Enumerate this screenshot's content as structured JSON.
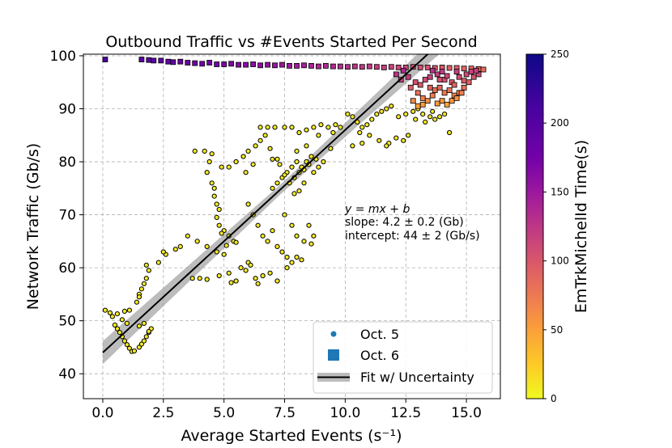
{
  "chart_data": {
    "type": "scatter",
    "title": "Outbound Traffic vs #Events Started Per Second",
    "xlabel": "Average Started Events (s⁻¹)",
    "ylabel": "Network Traffic (Gb/s)",
    "xlim": [
      -0.8,
      16.4
    ],
    "ylim": [
      35.3,
      100.3
    ],
    "xticks": [
      0.0,
      2.5,
      5.0,
      7.5,
      10.0,
      12.5,
      15.0
    ],
    "xtick_labels": [
      "0.0",
      "2.5",
      "5.0",
      "7.5",
      "10.0",
      "12.5",
      "15.0"
    ],
    "yticks": [
      40,
      50,
      60,
      70,
      80,
      90,
      100
    ],
    "ytick_labels": [
      "40",
      "50",
      "60",
      "70",
      "80",
      "90",
      "100"
    ],
    "grid": true,
    "colorbar": {
      "label": "EmTrkMichelId Time(s)",
      "range": [
        0,
        250
      ],
      "ticks": [
        0,
        50,
        100,
        150,
        200,
        250
      ],
      "tick_labels": [
        "0",
        "50",
        "100",
        "150",
        "200",
        "250"
      ],
      "colormap": "plasma_r"
    },
    "fit": {
      "label": "Fit w/ Uncertainty",
      "slope": 4.2,
      "intercept": 44,
      "x_range": [
        0.0,
        15.8
      ],
      "band_color": "#a0a0a0",
      "line_color": "#000000"
    },
    "annotation": {
      "equation": "y = mx + b",
      "slope_text": "slope: 4.2 ± 0.2 (Gb)",
      "intercept_text": "intercept: 44 ± 2 (Gb/s)"
    },
    "legend": {
      "placement": "lower-right",
      "entries": [
        {
          "label": "Oct. 5",
          "marker": "circle",
          "color": "#1f77b4"
        },
        {
          "label": "Oct. 6",
          "marker": "square",
          "color": "#1f77b4"
        },
        {
          "label": "Fit w/ Uncertainty",
          "marker": "line-band",
          "color": "#000000"
        }
      ]
    },
    "series": [
      {
        "name": "Oct. 5",
        "marker": "circle",
        "points": [
          [
            0.1,
            52
          ],
          [
            0.3,
            51.5
          ],
          [
            0.4,
            50.8
          ],
          [
            0.5,
            49.2
          ],
          [
            0.6,
            48.5
          ],
          [
            0.7,
            47.8
          ],
          [
            0.8,
            47
          ],
          [
            0.9,
            46.2
          ],
          [
            1.0,
            45.5
          ],
          [
            1.1,
            44.8
          ],
          [
            1.2,
            44.2
          ],
          [
            1.3,
            44.3
          ],
          [
            0.6,
            51.3
          ],
          [
            0.9,
            51.8
          ],
          [
            1.1,
            52
          ],
          [
            0.8,
            50.2
          ],
          [
            1.0,
            49.5
          ],
          [
            1.5,
            45
          ],
          [
            1.6,
            45.6
          ],
          [
            1.7,
            46.2
          ],
          [
            1.8,
            47
          ],
          [
            1.9,
            47.8
          ],
          [
            1.5,
            49
          ],
          [
            1.7,
            49.5
          ],
          [
            2.0,
            48.5
          ],
          [
            1.9,
            48
          ],
          [
            1.4,
            53.5
          ],
          [
            1.5,
            55
          ],
          [
            1.6,
            56
          ],
          [
            1.7,
            57
          ],
          [
            1.8,
            58
          ],
          [
            1.9,
            59.5
          ],
          [
            1.8,
            60.5
          ],
          [
            1.5,
            54.5
          ],
          [
            2.3,
            61
          ],
          [
            2.6,
            62.5
          ],
          [
            2.5,
            63
          ],
          [
            3.0,
            63.5
          ],
          [
            3.2,
            64
          ],
          [
            3.5,
            66
          ],
          [
            3.9,
            65
          ],
          [
            4.3,
            64
          ],
          [
            4.7,
            63
          ],
          [
            5.0,
            62.5
          ],
          [
            3.7,
            58
          ],
          [
            4.0,
            58
          ],
          [
            4.3,
            57.8
          ],
          [
            4.8,
            58.5
          ],
          [
            5.2,
            59
          ],
          [
            5.5,
            57.5
          ],
          [
            5.7,
            60
          ],
          [
            6.0,
            61
          ],
          [
            6.3,
            58
          ],
          [
            6.6,
            58.5
          ],
          [
            6.9,
            59
          ],
          [
            7.2,
            57.5
          ],
          [
            6.4,
            57
          ],
          [
            5.3,
            57.2
          ],
          [
            5.9,
            59.5
          ],
          [
            6.1,
            60.5
          ],
          [
            3.8,
            82
          ],
          [
            4.2,
            82
          ],
          [
            4.5,
            81.5
          ],
          [
            4.3,
            78
          ],
          [
            4.5,
            76
          ],
          [
            4.6,
            73.5
          ],
          [
            4.7,
            72
          ],
          [
            4.8,
            71
          ],
          [
            4.7,
            69.5
          ],
          [
            4.8,
            68
          ],
          [
            5.0,
            67
          ],
          [
            5.2,
            66
          ],
          [
            5.4,
            65
          ],
          [
            5.5,
            64.8
          ],
          [
            4.9,
            66.5
          ],
          [
            5.1,
            64.2
          ],
          [
            4.6,
            75
          ],
          [
            4.4,
            80
          ],
          [
            4.9,
            79
          ],
          [
            5.2,
            79
          ],
          [
            5.5,
            80
          ],
          [
            5.8,
            81
          ],
          [
            6.0,
            82
          ],
          [
            6.3,
            83
          ],
          [
            6.5,
            84
          ],
          [
            6.7,
            85
          ],
          [
            6.5,
            86.5
          ],
          [
            6.8,
            86.5
          ],
          [
            7.1,
            86.5
          ],
          [
            7.5,
            86.5
          ],
          [
            7.0,
            80.5
          ],
          [
            7.2,
            80.5
          ],
          [
            6.9,
            82.5
          ],
          [
            6.2,
            79.5
          ],
          [
            5.9,
            78
          ],
          [
            6.0,
            72
          ],
          [
            6.2,
            70
          ],
          [
            6.4,
            68
          ],
          [
            6.6,
            66
          ],
          [
            6.8,
            65
          ],
          [
            7.0,
            67
          ],
          [
            7.2,
            64
          ],
          [
            7.4,
            63
          ],
          [
            7.6,
            62
          ],
          [
            7.8,
            61
          ],
          [
            8.0,
            62
          ],
          [
            8.2,
            61.5
          ],
          [
            7.5,
            70
          ],
          [
            7.8,
            68
          ],
          [
            8.0,
            66
          ],
          [
            8.3,
            65
          ],
          [
            8.5,
            68
          ],
          [
            8.7,
            66
          ],
          [
            8.6,
            64.5
          ],
          [
            7.6,
            60
          ],
          [
            7.0,
            75
          ],
          [
            7.2,
            76
          ],
          [
            7.4,
            77
          ],
          [
            7.6,
            78
          ],
          [
            7.8,
            79
          ],
          [
            8.0,
            80
          ],
          [
            8.2,
            79
          ],
          [
            8.4,
            80
          ],
          [
            8.6,
            81
          ],
          [
            8.8,
            80.5
          ],
          [
            7.5,
            77.5
          ],
          [
            7.7,
            76
          ],
          [
            7.9,
            77
          ],
          [
            8.1,
            78
          ],
          [
            8.3,
            78.5
          ],
          [
            8.5,
            79.5
          ],
          [
            7.9,
            74
          ],
          [
            8.1,
            74.5
          ],
          [
            8.3,
            76
          ],
          [
            8.7,
            78
          ],
          [
            8.9,
            79
          ],
          [
            9.1,
            80
          ],
          [
            8.0,
            82
          ],
          [
            8.4,
            83
          ],
          [
            7.3,
            79.5
          ],
          [
            7.8,
            86.5
          ],
          [
            8.1,
            85.5
          ],
          [
            8.4,
            86
          ],
          [
            8.7,
            86.5
          ],
          [
            9.0,
            87
          ],
          [
            9.3,
            86.5
          ],
          [
            9.6,
            87
          ],
          [
            9.8,
            86.5
          ],
          [
            9.5,
            85.5
          ],
          [
            8.9,
            85
          ],
          [
            10.1,
            89
          ],
          [
            10.3,
            88.5
          ],
          [
            10.5,
            87.5
          ],
          [
            10.7,
            86.5
          ],
          [
            10.9,
            87
          ],
          [
            11.1,
            88
          ],
          [
            11.3,
            89
          ],
          [
            11.5,
            89.5
          ],
          [
            11.7,
            90
          ],
          [
            11.9,
            90.5
          ],
          [
            10.6,
            85.5
          ],
          [
            11.0,
            85
          ],
          [
            11.4,
            84
          ],
          [
            11.8,
            83.5
          ],
          [
            12.1,
            84.5
          ],
          [
            12.4,
            84
          ],
          [
            12.6,
            85
          ],
          [
            11.7,
            83
          ],
          [
            10.3,
            83
          ],
          [
            9.4,
            82.5
          ],
          [
            10.7,
            83.5
          ],
          [
            12.2,
            88.5
          ],
          [
            12.5,
            89
          ],
          [
            12.8,
            89.5
          ],
          [
            13.0,
            90
          ],
          [
            13.2,
            89
          ],
          [
            13.5,
            88.5
          ],
          [
            13.7,
            88
          ],
          [
            13.9,
            88.5
          ],
          [
            14.1,
            89
          ],
          [
            14.3,
            85.5
          ],
          [
            12.9,
            88
          ],
          [
            13.3,
            87.5
          ],
          [
            13.6,
            89.5
          ]
        ]
      },
      {
        "name": "Oct. 6",
        "marker": "square",
        "points": [
          [
            0.1,
            99.3
          ],
          [
            1.6,
            99.3
          ],
          [
            1.9,
            99.2
          ],
          [
            2.1,
            99.1
          ],
          [
            2.4,
            99.1
          ],
          [
            2.7,
            98.9
          ],
          [
            2.9,
            98.8
          ],
          [
            3.2,
            98.9
          ],
          [
            3.5,
            98.7
          ],
          [
            3.8,
            98.6
          ],
          [
            4.1,
            98.5
          ],
          [
            4.4,
            98.7
          ],
          [
            4.7,
            98.4
          ],
          [
            5.0,
            98.4
          ],
          [
            5.3,
            98.5
          ],
          [
            5.6,
            98.3
          ],
          [
            5.9,
            98.3
          ],
          [
            6.2,
            98.4
          ],
          [
            6.5,
            98.2
          ],
          [
            6.8,
            98.3
          ],
          [
            7.1,
            98.2
          ],
          [
            7.4,
            98.3
          ],
          [
            7.7,
            98.1
          ],
          [
            8.0,
            98.1
          ],
          [
            8.3,
            98.2
          ],
          [
            8.6,
            98.1
          ],
          [
            8.9,
            98.0
          ],
          [
            9.2,
            98.1
          ],
          [
            9.5,
            98.0
          ],
          [
            9.8,
            98.0
          ],
          [
            10.1,
            97.9
          ],
          [
            10.4,
            98.0
          ],
          [
            10.7,
            97.9
          ],
          [
            11.0,
            98.0
          ],
          [
            11.3,
            97.9
          ],
          [
            11.6,
            97.8
          ],
          [
            11.9,
            97.9
          ],
          [
            12.2,
            97.8
          ],
          [
            12.5,
            97.8
          ],
          [
            12.8,
            97.9
          ],
          [
            13.1,
            97.8
          ],
          [
            13.4,
            97.8
          ],
          [
            13.7,
            97.7
          ],
          [
            14.0,
            97.8
          ],
          [
            14.3,
            97.7
          ],
          [
            14.6,
            97.7
          ],
          [
            14.9,
            97.6
          ],
          [
            15.2,
            97.6
          ],
          [
            15.5,
            97.5
          ],
          [
            15.7,
            97.4
          ],
          [
            12.1,
            96.5
          ],
          [
            12.3,
            95.5
          ],
          [
            12.6,
            96
          ],
          [
            12.9,
            95
          ],
          [
            13.1,
            94.5
          ],
          [
            13.3,
            95.5
          ],
          [
            13.5,
            94
          ],
          [
            13.7,
            93.5
          ],
          [
            13.9,
            94
          ],
          [
            14.1,
            93
          ],
          [
            14.3,
            93.5
          ],
          [
            14.5,
            92.5
          ],
          [
            14.7,
            93
          ],
          [
            14.9,
            94
          ],
          [
            15.1,
            95
          ],
          [
            15.3,
            96
          ],
          [
            15.5,
            96.5
          ],
          [
            13.0,
            93
          ],
          [
            13.2,
            92
          ],
          [
            13.4,
            91.5
          ],
          [
            13.6,
            92.5
          ],
          [
            13.8,
            91
          ],
          [
            14.0,
            91.5
          ],
          [
            14.2,
            90.8
          ],
          [
            14.4,
            91.5
          ],
          [
            14.6,
            92
          ],
          [
            14.8,
            93
          ],
          [
            13.5,
            96
          ],
          [
            13.8,
            96.5
          ],
          [
            14.1,
            95.5
          ],
          [
            14.4,
            95
          ],
          [
            14.7,
            96
          ],
          [
            15.0,
            96.5
          ],
          [
            12.8,
            91.5
          ],
          [
            13.0,
            90.5
          ],
          [
            13.2,
            90.8
          ],
          [
            12.7,
            94
          ],
          [
            14.0,
            97
          ],
          [
            14.6,
            97
          ],
          [
            15.2,
            97
          ],
          [
            13.6,
            97.2
          ],
          [
            15.4,
            97.2
          ],
          [
            14.2,
            96.2
          ],
          [
            13.9,
            95.5
          ],
          [
            14.5,
            94.5
          ],
          [
            14.9,
            95.3
          ],
          [
            12.4,
            97.2
          ]
        ]
      }
    ]
  }
}
